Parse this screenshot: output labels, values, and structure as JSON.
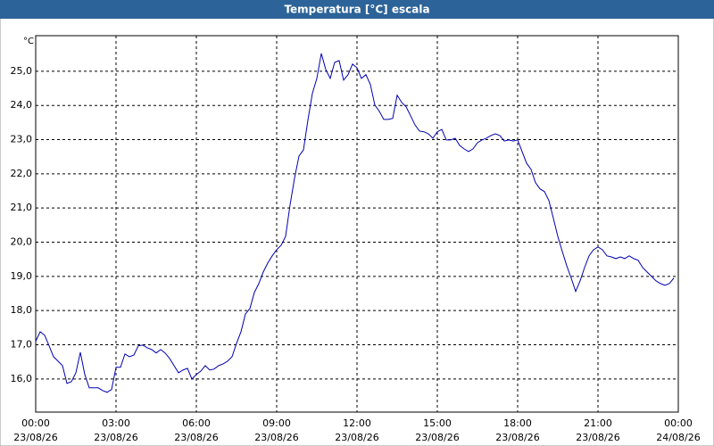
{
  "chart_data": {
    "type": "line",
    "title": "Temperatura [°C] escala",
    "y_unit": "°C",
    "x": [
      0,
      10,
      20,
      30,
      40,
      50,
      60,
      70,
      80,
      90,
      100,
      110,
      120,
      130,
      140,
      150,
      160,
      170,
      180,
      190,
      200,
      210,
      220,
      230,
      240,
      250,
      260,
      270,
      280,
      290,
      300,
      310,
      320,
      330,
      340,
      350,
      360,
      370,
      380,
      390,
      400,
      410,
      420,
      430,
      440,
      450,
      460,
      470,
      480,
      490,
      500,
      510,
      520,
      530,
      540,
      550,
      560,
      570,
      580,
      590,
      600,
      610,
      620,
      630,
      640,
      650,
      660,
      670,
      680,
      690,
      700,
      710,
      720,
      730,
      740,
      750,
      760,
      770,
      780,
      790,
      800,
      810,
      820,
      830,
      840,
      850,
      860,
      870,
      880,
      890,
      900,
      910,
      920,
      930,
      940,
      950,
      960,
      970,
      980,
      990,
      1000,
      1010,
      1020,
      1030,
      1040,
      1050,
      1060,
      1070,
      1080,
      1090,
      1100,
      1110,
      1120,
      1130,
      1140,
      1150,
      1160,
      1170,
      1180,
      1190,
      1200,
      1210,
      1220,
      1230,
      1240,
      1250,
      1260,
      1270,
      1280,
      1290,
      1300,
      1310,
      1320,
      1330,
      1340,
      1350,
      1360,
      1370,
      1380,
      1390,
      1400,
      1410,
      1420,
      1430
    ],
    "series": [
      {
        "name": "Temperatura",
        "color": "#0000b0",
        "values": [
          17.1,
          17.38,
          17.28,
          16.97,
          16.65,
          16.52,
          16.39,
          15.87,
          15.92,
          16.18,
          16.78,
          16.13,
          15.74,
          15.74,
          15.74,
          15.66,
          15.61,
          15.69,
          16.34,
          16.34,
          16.73,
          16.65,
          16.7,
          16.97,
          16.99,
          16.91,
          16.86,
          16.76,
          16.86,
          16.76,
          16.6,
          16.39,
          16.18,
          16.26,
          16.31,
          16.0,
          16.13,
          16.23,
          16.39,
          16.26,
          16.29,
          16.39,
          16.44,
          16.52,
          16.65,
          17.04,
          17.38,
          17.9,
          18.06,
          18.53,
          18.79,
          19.13,
          19.39,
          19.6,
          19.78,
          19.91,
          20.17,
          21.09,
          21.87,
          22.52,
          22.7,
          23.57,
          24.35,
          24.79,
          25.52,
          25.05,
          24.79,
          25.26,
          25.31,
          24.74,
          24.9,
          25.21,
          25.1,
          24.79,
          24.9,
          24.61,
          24.01,
          23.83,
          23.59,
          23.59,
          23.62,
          24.3,
          24.09,
          23.96,
          23.7,
          23.43,
          23.25,
          23.23,
          23.17,
          23.04,
          23.23,
          23.3,
          22.99,
          22.99,
          23.04,
          22.83,
          22.73,
          22.65,
          22.73,
          22.91,
          22.99,
          23.04,
          23.12,
          23.17,
          23.12,
          22.96,
          22.99,
          22.96,
          22.99,
          22.65,
          22.31,
          22.13,
          21.74,
          21.56,
          21.48,
          21.22,
          20.7,
          20.17,
          19.73,
          19.31,
          18.95,
          18.56,
          18.87,
          19.26,
          19.6,
          19.78,
          19.86,
          19.78,
          19.6,
          19.57,
          19.52,
          19.57,
          19.52,
          19.6,
          19.52,
          19.47,
          19.26,
          19.13,
          19.0,
          18.87,
          18.79,
          18.74,
          18.79,
          18.95
        ]
      }
    ],
    "xlim": [
      0,
      1440
    ],
    "xticks": [
      {
        "value": 0,
        "label": "00:00"
      },
      {
        "value": 180,
        "label": "03:00"
      },
      {
        "value": 360,
        "label": "06:00"
      },
      {
        "value": 540,
        "label": "09:00"
      },
      {
        "value": 720,
        "label": "12:00"
      },
      {
        "value": 900,
        "label": "15:00"
      },
      {
        "value": 1080,
        "label": "18:00"
      },
      {
        "value": 1260,
        "label": "21:00"
      },
      {
        "value": 1440,
        "label": "00:00"
      }
    ],
    "xtick_dates": [
      "23/08/26",
      "23/08/26",
      "23/08/26",
      "23/08/26",
      "23/08/26",
      "23/08/26",
      "23/08/26",
      "23/08/26",
      "24/08/26"
    ],
    "ylim": [
      15.03,
      26.04
    ],
    "yticks": [
      {
        "value": 16,
        "label": "16,0"
      },
      {
        "value": 17,
        "label": "17,0"
      },
      {
        "value": 18,
        "label": "18,0"
      },
      {
        "value": 19,
        "label": "19,0"
      },
      {
        "value": 20,
        "label": "20,0"
      },
      {
        "value": 21,
        "label": "21,0"
      },
      {
        "value": 22,
        "label": "22,0"
      },
      {
        "value": 23,
        "label": "23,0"
      },
      {
        "value": 24,
        "label": "24,0"
      },
      {
        "value": 25,
        "label": "25,0"
      }
    ],
    "grid": true
  }
}
